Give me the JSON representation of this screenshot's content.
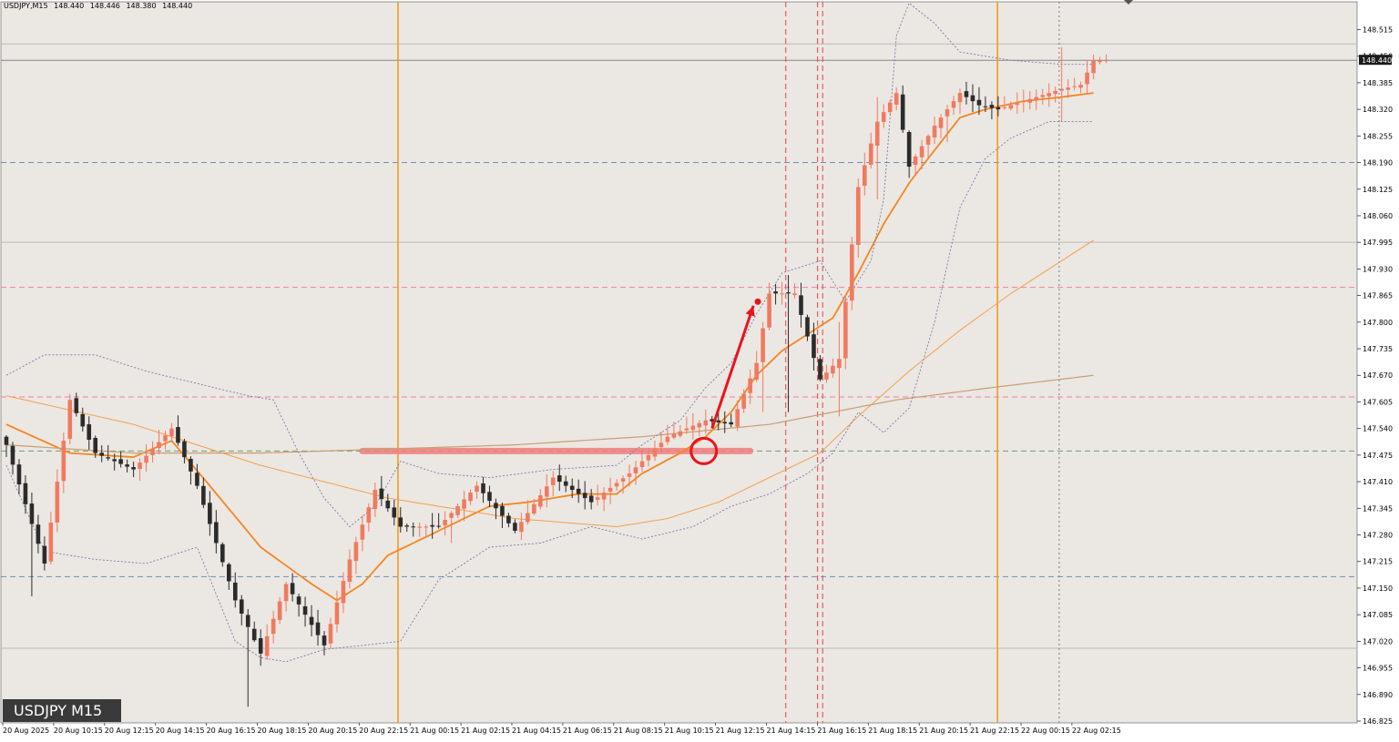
{
  "header": {
    "symbol_tf": "USDJPY,M15",
    "ohlc": [
      "148.440",
      "148.446",
      "148.380",
      "148.440"
    ]
  },
  "badge": "USDJPY M15",
  "colors": {
    "background": "#ebe7e3",
    "bull": "#f07a5f",
    "bear": "#2b2b2b",
    "ma_fast": "#f5861f",
    "ma_slow": "#f5a04a",
    "ma_long": "#c8a070",
    "bands": "#7a7aa8",
    "session": "#f59a22",
    "red_dash": "#e8414a",
    "blue_dash": "#6f8fb0",
    "pink_dash": "#ef7fa6",
    "green_dash": "#6fa06f",
    "grey_line": "#bdbab6",
    "price_line": "#8a8886",
    "annotation": "#e8141c",
    "highlight": "#f07e7e"
  },
  "chart_data": {
    "type": "candlestick",
    "title": "USDJPY,M15",
    "ylim": [
      146.825,
      148.545
    ],
    "y_ticks": [
      "148.515",
      "148.450",
      "148.385",
      "148.320",
      "148.255",
      "148.190",
      "148.125",
      "148.060",
      "147.995",
      "147.930",
      "147.865",
      "147.800",
      "147.735",
      "147.670",
      "147.605",
      "147.540",
      "147.475",
      "147.410",
      "147.345",
      "147.280",
      "147.215",
      "147.150",
      "147.085",
      "147.020",
      "146.955",
      "146.890",
      "146.825"
    ],
    "current_price_label": "148.440",
    "current_price": 148.44,
    "x_labels": [
      "20 Aug 2025",
      "20 Aug 10:15",
      "20 Aug 12:15",
      "20 Aug 14:15",
      "20 Aug 16:15",
      "20 Aug 18:15",
      "20 Aug 20:15",
      "20 Aug 22:15",
      "21 Aug 00:15",
      "21 Aug 02:15",
      "21 Aug 04:15",
      "21 Aug 06:15",
      "21 Aug 08:15",
      "21 Aug 10:15",
      "21 Aug 12:15",
      "21 Aug 14:15",
      "21 Aug 16:15",
      "21 Aug 18:15",
      "21 Aug 20:15",
      "21 Aug 22:15",
      "22 Aug 00:15",
      "22 Aug 02:15"
    ],
    "candle_count": 174,
    "anchors": [
      [
        0,
        147.5
      ],
      [
        6,
        147.21
      ],
      [
        10,
        147.61
      ],
      [
        14,
        147.48
      ],
      [
        20,
        147.44
      ],
      [
        26,
        147.54
      ],
      [
        30,
        147.4
      ],
      [
        36,
        147.12
      ],
      [
        40,
        146.99
      ],
      [
        44,
        147.16
      ],
      [
        50,
        147.01
      ],
      [
        54,
        147.22
      ],
      [
        58,
        147.39
      ],
      [
        62,
        147.3
      ],
      [
        68,
        147.3
      ],
      [
        74,
        147.4
      ],
      [
        80,
        147.29
      ],
      [
        86,
        147.42
      ],
      [
        92,
        147.36
      ],
      [
        98,
        147.43
      ],
      [
        104,
        147.52
      ],
      [
        110,
        147.56
      ],
      [
        114,
        147.55
      ],
      [
        118,
        147.7
      ],
      [
        120,
        147.87
      ],
      [
        124,
        147.87
      ],
      [
        128,
        147.66
      ],
      [
        131,
        147.71
      ],
      [
        134,
        148.13
      ],
      [
        137,
        148.29
      ],
      [
        140,
        148.36
      ],
      [
        142,
        148.18
      ],
      [
        146,
        148.28
      ],
      [
        150,
        148.36
      ],
      [
        153,
        148.33
      ],
      [
        156,
        148.32
      ],
      [
        160,
        148.34
      ],
      [
        166,
        148.37
      ],
      [
        169,
        148.38
      ],
      [
        171,
        148.44
      ],
      [
        173,
        148.44
      ]
    ],
    "lows": [
      [
        4,
        147.13
      ],
      [
        38,
        146.86
      ],
      [
        70,
        147.26
      ],
      [
        119,
        147.58
      ],
      [
        135,
        148.23
      ],
      [
        148,
        148.24
      ]
    ],
    "spikes": [
      {
        "index": 123,
        "high": 147.915,
        "low": 147.58
      },
      {
        "index": 131,
        "high": 147.8,
        "low": 147.57
      },
      {
        "index": 137,
        "high": 148.35,
        "low": 148.1
      },
      {
        "index": 166,
        "high": 148.472,
        "low": 148.29
      }
    ],
    "series": [
      {
        "kind": "ma_fast",
        "anchors": [
          [
            0,
            147.55
          ],
          [
            10,
            147.48
          ],
          [
            20,
            147.47
          ],
          [
            26,
            147.51
          ],
          [
            32,
            147.4
          ],
          [
            40,
            147.25
          ],
          [
            48,
            147.16
          ],
          [
            52,
            147.12
          ],
          [
            56,
            147.16
          ],
          [
            60,
            147.23
          ],
          [
            68,
            147.29
          ],
          [
            76,
            147.35
          ],
          [
            82,
            147.36
          ],
          [
            90,
            147.38
          ],
          [
            96,
            147.38
          ],
          [
            100,
            147.43
          ],
          [
            106,
            147.48
          ],
          [
            110,
            147.52
          ],
          [
            114,
            147.58
          ],
          [
            118,
            147.67
          ],
          [
            122,
            147.73
          ],
          [
            126,
            147.77
          ],
          [
            130,
            147.81
          ],
          [
            134,
            147.92
          ],
          [
            138,
            148.04
          ],
          [
            142,
            148.14
          ],
          [
            146,
            148.22
          ],
          [
            150,
            148.3
          ],
          [
            154,
            148.32
          ],
          [
            160,
            148.34
          ],
          [
            166,
            148.35
          ],
          [
            171,
            148.36
          ]
        ]
      },
      {
        "kind": "ma_slow",
        "anchors": [
          [
            0,
            147.62
          ],
          [
            20,
            147.55
          ],
          [
            40,
            147.45
          ],
          [
            60,
            147.37
          ],
          [
            80,
            147.32
          ],
          [
            96,
            147.3
          ],
          [
            104,
            147.32
          ],
          [
            112,
            147.36
          ],
          [
            120,
            147.42
          ],
          [
            128,
            147.48
          ],
          [
            134,
            147.57
          ],
          [
            142,
            147.68
          ],
          [
            150,
            147.78
          ],
          [
            158,
            147.87
          ],
          [
            166,
            147.95
          ],
          [
            171,
            148.0
          ]
        ]
      },
      {
        "kind": "ma_long",
        "anchors": [
          [
            0,
            147.5
          ],
          [
            20,
            147.48
          ],
          [
            40,
            147.48
          ],
          [
            60,
            147.49
          ],
          [
            80,
            147.5
          ],
          [
            100,
            147.52
          ],
          [
            120,
            147.55
          ],
          [
            140,
            147.61
          ],
          [
            155,
            147.64
          ],
          [
            171,
            147.67
          ]
        ]
      },
      {
        "kind": "band_upper",
        "anchors": [
          [
            0,
            147.67
          ],
          [
            6,
            147.72
          ],
          [
            14,
            147.72
          ],
          [
            22,
            147.68
          ],
          [
            30,
            147.65
          ],
          [
            38,
            147.62
          ],
          [
            42,
            147.61
          ],
          [
            46,
            147.48
          ],
          [
            50,
            147.37
          ],
          [
            54,
            147.3
          ],
          [
            58,
            147.35
          ],
          [
            62,
            147.46
          ],
          [
            68,
            147.43
          ],
          [
            76,
            147.42
          ],
          [
            86,
            147.44
          ],
          [
            96,
            147.45
          ],
          [
            100,
            147.5
          ],
          [
            106,
            147.56
          ],
          [
            110,
            147.64
          ],
          [
            114,
            147.7
          ],
          [
            118,
            147.82
          ],
          [
            122,
            147.92
          ],
          [
            128,
            147.95
          ],
          [
            132,
            147.85
          ],
          [
            136,
            147.95
          ],
          [
            138,
            148.1
          ],
          [
            140,
            148.5
          ],
          [
            142,
            148.58
          ],
          [
            146,
            148.53
          ],
          [
            150,
            148.46
          ],
          [
            158,
            148.44
          ],
          [
            166,
            148.43
          ],
          [
            171,
            148.43
          ]
        ]
      },
      {
        "kind": "band_lower",
        "anchors": [
          [
            0,
            147.45
          ],
          [
            6,
            147.24
          ],
          [
            14,
            147.22
          ],
          [
            22,
            147.21
          ],
          [
            30,
            147.25
          ],
          [
            36,
            147.02
          ],
          [
            40,
            146.98
          ],
          [
            44,
            146.97
          ],
          [
            50,
            147.0
          ],
          [
            56,
            147.01
          ],
          [
            62,
            147.02
          ],
          [
            68,
            147.17
          ],
          [
            76,
            147.25
          ],
          [
            84,
            147.26
          ],
          [
            92,
            147.3
          ],
          [
            100,
            147.27
          ],
          [
            108,
            147.3
          ],
          [
            114,
            147.35
          ],
          [
            120,
            147.38
          ],
          [
            126,
            147.43
          ],
          [
            130,
            147.48
          ],
          [
            134,
            147.58
          ],
          [
            138,
            147.53
          ],
          [
            142,
            147.59
          ],
          [
            146,
            147.8
          ],
          [
            150,
            148.08
          ],
          [
            154,
            148.2
          ],
          [
            158,
            148.25
          ],
          [
            164,
            148.29
          ],
          [
            171,
            148.29
          ]
        ]
      }
    ],
    "hlines": [
      {
        "kind": "blue_dash",
        "price": 148.19
      },
      {
        "kind": "pink_dash",
        "price": 147.885
      },
      {
        "kind": "pink_dash",
        "price": 147.617
      },
      {
        "kind": "green_dash",
        "price": 147.485
      },
      {
        "kind": "blue_dash",
        "price": 147.178
      },
      {
        "kind": "grey_line",
        "price": 148.48
      },
      {
        "kind": "grey_line",
        "price": 147.995
      },
      {
        "kind": "grey_line",
        "price": 147.003
      }
    ],
    "vlines": [
      {
        "kind": "session",
        "index": 61.6
      },
      {
        "kind": "session",
        "index": 155.9
      },
      {
        "kind": "red_dash",
        "index": 122.6
      },
      {
        "kind": "red_dash",
        "index": 127.6
      },
      {
        "kind": "red_dash",
        "index": 128.4
      },
      {
        "kind": "dotted",
        "index": 165.6
      }
    ],
    "annotations": {
      "zone": {
        "from_index": 56,
        "to_index": 117,
        "price": 147.485
      },
      "circle": {
        "index": 109.7,
        "price": 147.485
      },
      "arrow": {
        "from_index": 111,
        "from_price": 147.54,
        "to_index": 117.5,
        "to_price": 147.84
      }
    }
  }
}
